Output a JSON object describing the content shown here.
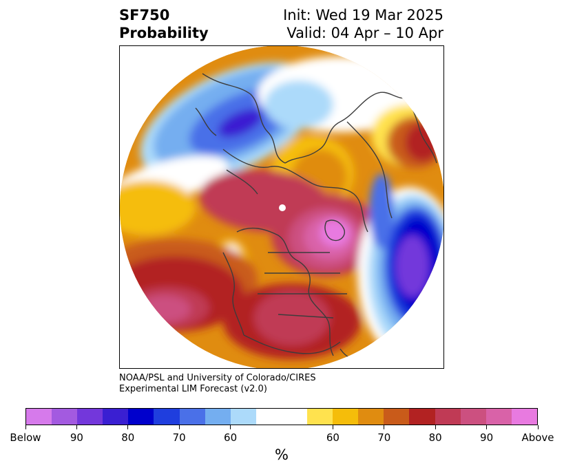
{
  "header": {
    "title_line1": "SF750",
    "title_line2": "Probability",
    "init_text": "Init: Wed 19 Mar 2025",
    "valid_text": "Valid: 04 Apr – 10 Apr"
  },
  "credit": {
    "line1": "NOAA/PSL and University of Colorado/CIRES",
    "line2": "Experimental LIM Forecast (v2.0)"
  },
  "colorbar": {
    "unit_label": "%",
    "colors": [
      "#d67aeb",
      "#a35ae0",
      "#7337db",
      "#3a1fd2",
      "#0000cc",
      "#1f3ede",
      "#4a70e8",
      "#74aef0",
      "#acdafa",
      "#ffffff",
      "#ffffff",
      "#ffe24e",
      "#f5bd0a",
      "#e08c10",
      "#c95b1a",
      "#b22222",
      "#c03a55",
      "#cc5080",
      "#d962a8",
      "#e87ae0"
    ],
    "tick_labels": [
      "Below",
      "90",
      "80",
      "70",
      "60",
      "60",
      "70",
      "80",
      "90",
      "Above"
    ]
  },
  "colors": {
    "coastline": "#3c3c3c",
    "ocean_blank": "#ffffff"
  }
}
